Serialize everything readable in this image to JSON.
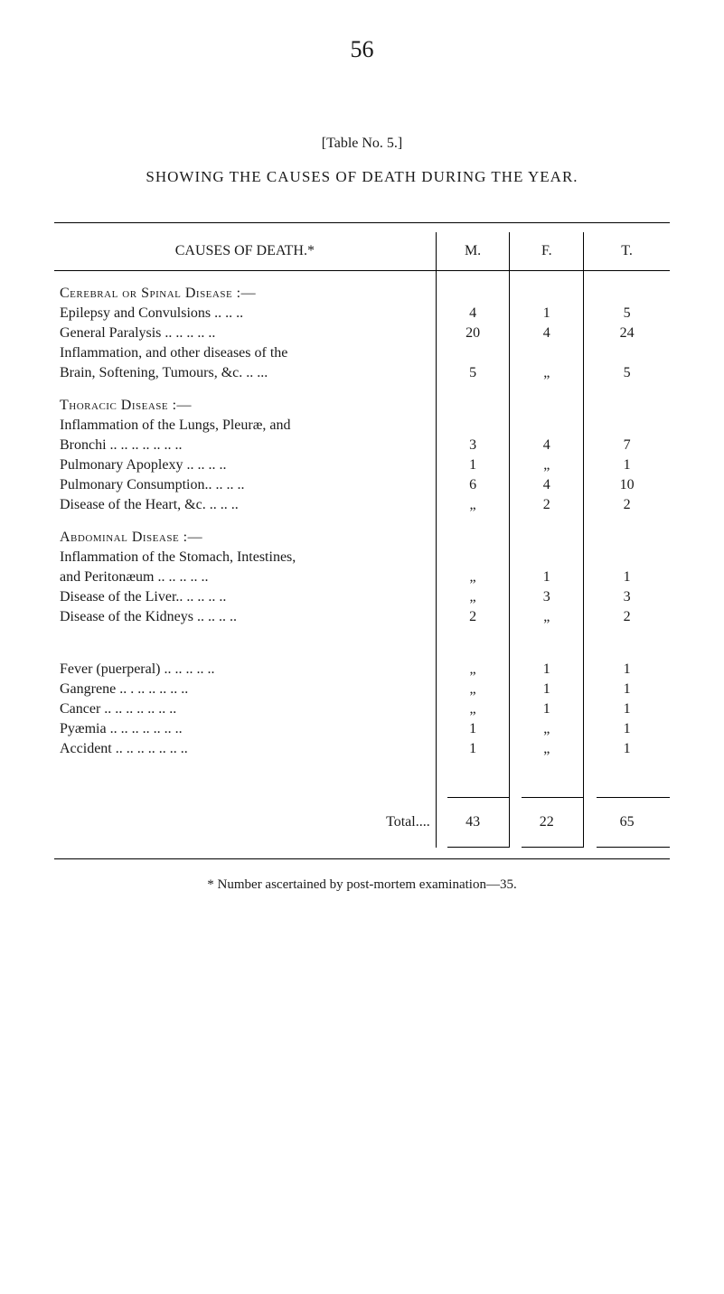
{
  "page_number": "56",
  "table_ref": "[Table No. 5.]",
  "title": "SHOWING THE CAUSES OF DEATH DURING THE YEAR.",
  "header": {
    "causes": "CAUSES OF DEATH.*",
    "m": "M.",
    "f": "F.",
    "t": "T."
  },
  "sections": [
    {
      "heading": "Cerebral or Spinal Disease :—",
      "rows": [
        {
          "label": "Epilepsy and Convulsions  .. .. ..",
          "m": "4",
          "f": "1",
          "t": "5"
        },
        {
          "label": "General Paralysis  .. .. .. .. ..",
          "m": "20",
          "f": "4",
          "t": "24"
        },
        {
          "label": "Inflammation, and other diseases of the",
          "m": "",
          "f": "",
          "t": ""
        },
        {
          "label": "Brain, Softening, Tumours, &c. .. ...",
          "indent": 2,
          "m": "5",
          "f": "„",
          "t": "5"
        }
      ]
    },
    {
      "heading": "Thoracic Disease :—",
      "rows": [
        {
          "label": "Inflammation of the Lungs, Pleuræ, and",
          "m": "",
          "f": "",
          "t": ""
        },
        {
          "label": "Bronchi .. .. .. .. .. .. ..",
          "indent": 2,
          "m": "3",
          "f": "4",
          "t": "7"
        },
        {
          "label": "Pulmonary Apoplexy  .. .. .. ..",
          "m": "1",
          "f": "„",
          "t": "1"
        },
        {
          "label": "Pulmonary Consumption.. .. .. ..",
          "m": "6",
          "f": "4",
          "t": "10"
        },
        {
          "label": "Disease of the Heart, &c.  .. .. ..",
          "m": "„",
          "f": "2",
          "t": "2"
        }
      ]
    },
    {
      "heading": "Abdominal Disease :—",
      "rows": [
        {
          "label": "Inflammation of the Stomach, Intestines,",
          "m": "",
          "f": "",
          "t": ""
        },
        {
          "label": "and Peritonæum .. .. .. .. ..",
          "indent": 2,
          "m": "„",
          "f": "1",
          "t": "1"
        },
        {
          "label": "Disease of the Liver.. .. .. .. ..",
          "m": "„",
          "f": "3",
          "t": "3"
        },
        {
          "label": "Disease of the Kidneys .. .. .. ..",
          "m": "2",
          "f": "„",
          "t": "2"
        }
      ]
    },
    {
      "heading": "",
      "rows": [
        {
          "label": "Fever (puerperal)  .. .. .. .. ..",
          "m": "„",
          "f": "1",
          "t": "1"
        },
        {
          "label": "Gangrene .. . .. .. .. .. ..",
          "m": "„",
          "f": "1",
          "t": "1"
        },
        {
          "label": "Cancer  .. .. .. .. .. .. ..",
          "m": "„",
          "f": "1",
          "t": "1"
        },
        {
          "label": "Pyæmia  .. .. .. .. .. .. ..",
          "m": "1",
          "f": "„",
          "t": "1"
        },
        {
          "label": "Accident  .. .. .. .. .. .. ..",
          "m": "1",
          "f": "„",
          "t": "1"
        }
      ]
    }
  ],
  "total": {
    "label": "Total....",
    "m": "43",
    "f": "22",
    "t": "65"
  },
  "footnote": "* Number ascertained by post-mortem examination—35.",
  "style": {
    "background_color": "#ffffff",
    "text_color": "#1a1a1a",
    "font_family": "Georgia, 'Times New Roman', serif",
    "base_fontsize": 16,
    "page_number_fontsize": 26,
    "title_fontsize": 17,
    "col_widths_pct": [
      62,
      12,
      12,
      14
    ],
    "rule_color": "#000000"
  }
}
